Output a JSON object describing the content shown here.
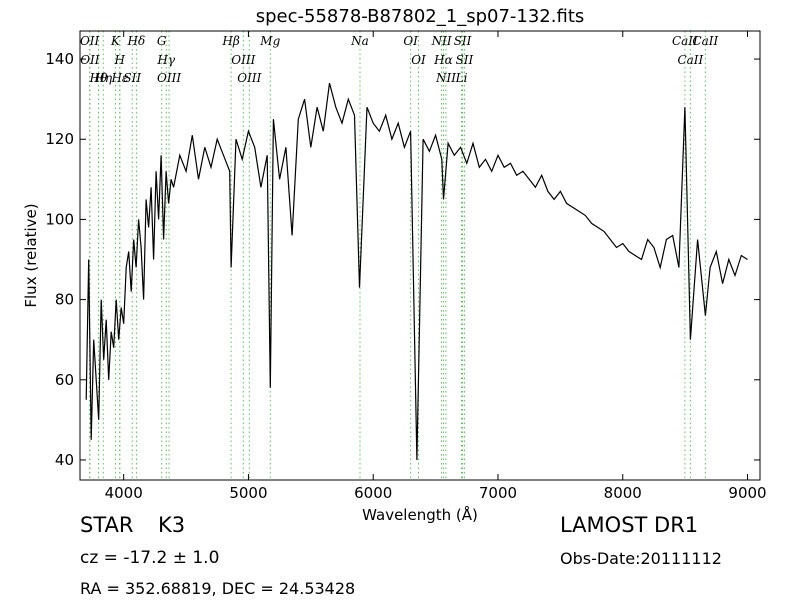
{
  "chart_data": {
    "type": "line",
    "title": "spec-55878-B87802_1_sp07-132.fits",
    "xlabel": "Wavelength (Å)",
    "ylabel": "Flux (relative)",
    "xlim": [
      3650,
      9100
    ],
    "ylim": [
      35,
      147
    ],
    "xticks": [
      4000,
      5000,
      6000,
      7000,
      8000,
      9000
    ],
    "xtick_labels": [
      "4000",
      "5000",
      "6000",
      "7000",
      "8000",
      "9000"
    ],
    "yticks": [
      40,
      60,
      80,
      100,
      120,
      140
    ],
    "ytick_labels": [
      "40",
      "60",
      "80",
      "100",
      "120",
      "140"
    ],
    "grid": false,
    "series": [
      {
        "color": "#000000",
        "x": [
          3700,
          3720,
          3740,
          3760,
          3780,
          3800,
          3820,
          3840,
          3860,
          3880,
          3900,
          3920,
          3940,
          3960,
          3980,
          4000,
          4020,
          4040,
          4060,
          4080,
          4100,
          4120,
          4140,
          4160,
          4180,
          4200,
          4220,
          4240,
          4260,
          4280,
          4300,
          4320,
          4340,
          4360,
          4380,
          4400,
          4450,
          4500,
          4550,
          4600,
          4650,
          4700,
          4750,
          4800,
          4850,
          4861,
          4900,
          4950,
          5000,
          5050,
          5100,
          5150,
          5175,
          5200,
          5250,
          5300,
          5350,
          5400,
          5450,
          5500,
          5550,
          5600,
          5650,
          5700,
          5750,
          5800,
          5850,
          5890,
          5950,
          6000,
          6050,
          6100,
          6150,
          6200,
          6250,
          6300,
          6350,
          6400,
          6450,
          6500,
          6550,
          6563,
          6600,
          6650,
          6700,
          6750,
          6800,
          6850,
          6900,
          6950,
          7000,
          7050,
          7100,
          7150,
          7200,
          7250,
          7300,
          7350,
          7400,
          7450,
          7500,
          7550,
          7600,
          7650,
          7700,
          7750,
          7800,
          7850,
          7900,
          7950,
          8000,
          8050,
          8100,
          8150,
          8200,
          8250,
          8300,
          8350,
          8400,
          8450,
          8498,
          8542,
          8600,
          8662,
          8700,
          8750,
          8800,
          8850,
          8900,
          8950,
          9000
        ],
        "y": [
          55,
          90,
          45,
          70,
          60,
          50,
          80,
          65,
          75,
          60,
          72,
          68,
          80,
          70,
          78,
          74,
          88,
          92,
          82,
          95,
          88,
          100,
          93,
          80,
          105,
          98,
          108,
          90,
          112,
          100,
          116,
          95,
          112,
          104,
          110,
          108,
          116,
          112,
          121,
          110,
          118,
          113,
          120,
          116,
          112,
          88,
          120,
          115,
          122,
          118,
          108,
          116,
          58,
          125,
          110,
          118,
          96,
          125,
          130,
          118,
          128,
          122,
          134,
          128,
          124,
          130,
          126,
          83,
          128,
          124,
          122,
          126,
          120,
          124,
          118,
          122,
          40,
          120,
          117,
          121,
          115,
          105,
          119,
          116,
          118,
          114,
          119,
          113,
          115,
          112,
          116,
          113,
          114,
          111,
          112,
          110,
          108,
          111,
          107,
          105,
          107,
          104,
          103,
          102,
          101,
          99,
          98,
          97,
          95,
          93,
          94,
          92,
          91,
          90,
          95,
          93,
          88,
          95,
          96,
          88,
          128,
          70,
          95,
          76,
          88,
          92,
          84,
          90,
          86,
          91,
          90
        ]
      }
    ],
    "spectral_lines": [
      {
        "label": "Hθ",
        "wavelength": 3798
      },
      {
        "label": "OII",
        "wavelength": 3727
      },
      {
        "label": "OII",
        "wavelength": 3729
      },
      {
        "label": "Hη",
        "wavelength": 3836
      },
      {
        "label": "K",
        "wavelength": 3934
      },
      {
        "label": "Hε",
        "wavelength": 3970
      },
      {
        "label": "SII",
        "wavelength": 4069
      },
      {
        "label": "H",
        "wavelength": 3968
      },
      {
        "label": "Hδ",
        "wavelength": 4102
      },
      {
        "label": "OIII",
        "wavelength": 4364
      },
      {
        "label": "Hγ",
        "wavelength": 4341
      },
      {
        "label": "G",
        "wavelength": 4305
      },
      {
        "label": "OIII",
        "wavelength": 5007
      },
      {
        "label": "OIII",
        "wavelength": 4959
      },
      {
        "label": "Hβ",
        "wavelength": 4861
      },
      {
        "label": "Mg",
        "wavelength": 5175
      },
      {
        "label": "Na",
        "wavelength": 5894
      },
      {
        "label": "OI",
        "wavelength": 6300
      },
      {
        "label": "OI",
        "wavelength": 6363
      },
      {
        "label": "Hα",
        "wavelength": 6563
      },
      {
        "label": "NII",
        "wavelength": 6548
      },
      {
        "label": "NII",
        "wavelength": 6583
      },
      {
        "label": "SII",
        "wavelength": 6716
      },
      {
        "label": "Li",
        "wavelength": 6708
      },
      {
        "label": "SII",
        "wavelength": 6731
      },
      {
        "label": "CaII",
        "wavelength": 8542
      },
      {
        "label": "CaII",
        "wavelength": 8498
      },
      {
        "label": "CaII",
        "wavelength": 8662
      }
    ]
  },
  "info": {
    "obj_class": "STAR",
    "obj_subclass": "K3",
    "survey": "LAMOST DR1",
    "redshift": "cz = -17.2 ± 1.0",
    "obs_date": "Obs-Date:20111112",
    "coords": "RA = 352.68819, DEC = 24.53428"
  }
}
